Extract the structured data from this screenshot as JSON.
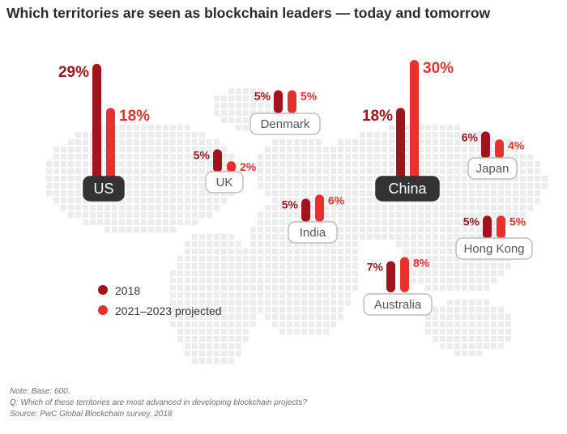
{
  "title": "Which territories are seen as blockchain leaders — today and tomorrow",
  "colors": {
    "s2018": "#a0151c",
    "s2021": "#e8302e",
    "label_dark": "#333333",
    "text_pct_dark": "#a0151c",
    "text_pct_light": "#e8302e"
  },
  "chart_data": {
    "type": "bar",
    "title": "Which territories are seen as blockchain leaders — today and tomorrow",
    "categories": [
      "US",
      "UK",
      "Denmark",
      "India",
      "China",
      "Japan",
      "Hong Kong",
      "Australia"
    ],
    "series": [
      {
        "name": "2018",
        "values": [
          29,
          5,
          5,
          5,
          18,
          6,
          5,
          7
        ]
      },
      {
        "name": "2021–2023 projected",
        "values": [
          18,
          2,
          5,
          6,
          30,
          4,
          5,
          8
        ]
      }
    ],
    "value_labels": {
      "2018": [
        "29%",
        "5%",
        "5%",
        "5%",
        "18%",
        "6%",
        "5%",
        "7%"
      ],
      "2021–2023 projected": [
        "18%",
        "2%",
        "5%",
        "6%",
        "30%",
        "4%",
        "5%",
        "8%"
      ]
    },
    "highlighted": [
      "US",
      "China"
    ],
    "unit": "%"
  },
  "legend": [
    {
      "label": "2018"
    },
    {
      "label": "2021–2023 projected"
    }
  ],
  "footnotes": {
    "note": "Note: Base: 600.",
    "question": "Q: Which of these territories are most advanced in developing blockchain projects?",
    "source": "Source: PwC Global Blockchain survey, 2018"
  }
}
